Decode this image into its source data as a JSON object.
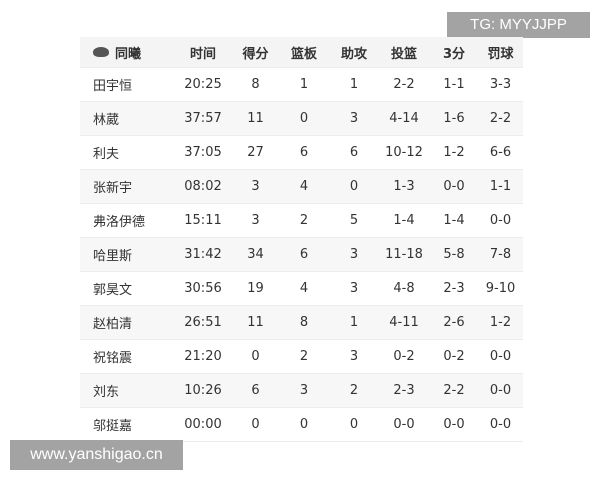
{
  "watermark_top": "TG: MYYJJPP",
  "watermark_bottom": "www.yanshigao.cn",
  "header": [
    "同曦",
    "时间",
    "得分",
    "篮板",
    "助攻",
    "投篮",
    "3分",
    "罚球"
  ],
  "rows": [
    [
      "田宇恒",
      "20:25",
      "8",
      "1",
      "1",
      "2-2",
      "1-1",
      "3-3"
    ],
    [
      "林葳",
      "37:57",
      "11",
      "0",
      "3",
      "4-14",
      "1-6",
      "2-2"
    ],
    [
      "利夫",
      "37:05",
      "27",
      "6",
      "6",
      "10-12",
      "1-2",
      "6-6"
    ],
    [
      "张新宇",
      "08:02",
      "3",
      "4",
      "0",
      "1-3",
      "0-0",
      "1-1"
    ],
    [
      "弗洛伊德",
      "15:11",
      "3",
      "2",
      "5",
      "1-4",
      "1-4",
      "0-0"
    ],
    [
      "哈里斯",
      "31:42",
      "34",
      "6",
      "3",
      "11-18",
      "5-8",
      "7-8"
    ],
    [
      "郭昊文",
      "30:56",
      "19",
      "4",
      "3",
      "4-8",
      "2-3",
      "9-10"
    ],
    [
      "赵柏清",
      "26:51",
      "11",
      "8",
      "1",
      "4-11",
      "2-6",
      "1-2"
    ],
    [
      "祝铭震",
      "21:20",
      "0",
      "2",
      "3",
      "0-2",
      "0-2",
      "0-0"
    ],
    [
      "刘东",
      "10:26",
      "6",
      "3",
      "2",
      "2-3",
      "2-2",
      "0-0"
    ],
    [
      "邬挺嘉",
      "00:00",
      "0",
      "0",
      "0",
      "0-0",
      "0-0",
      "0-0"
    ]
  ]
}
